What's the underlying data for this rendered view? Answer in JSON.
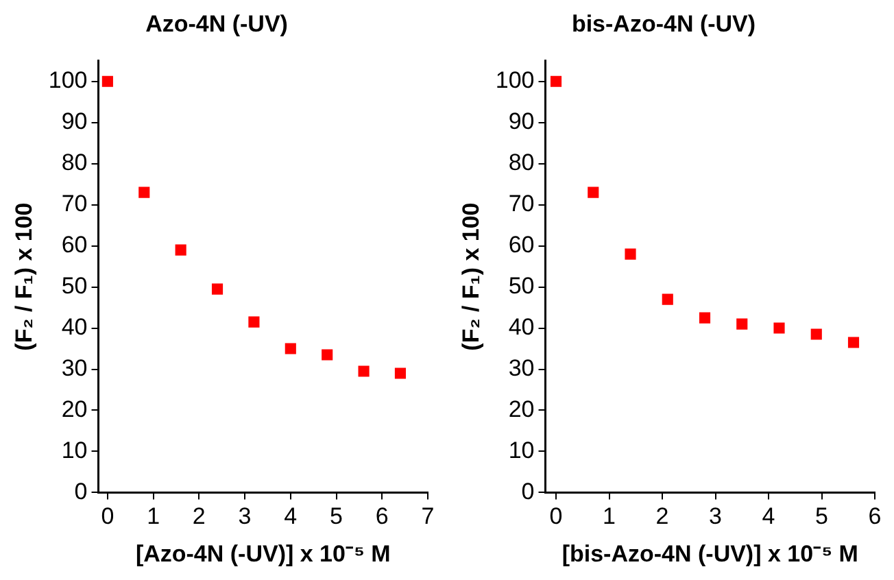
{
  "chart_data": [
    {
      "type": "scatter",
      "title": "Azo-4N (-UV)",
      "xlabel": "[Azo-4N (-UV)] x 10⁻⁵ M",
      "ylabel": "(F₂ / F₁) x 100",
      "x": [
        0,
        0.8,
        1.6,
        2.4,
        3.2,
        4,
        4.8,
        5.6,
        6.4
      ],
      "series": [
        {
          "color": "#ff0000",
          "values": [
            100,
            73,
            59,
            49.5,
            41.5,
            35,
            33.5,
            29.5,
            29
          ]
        }
      ],
      "xlim": [
        -0.2,
        7
      ],
      "xticks": [
        0,
        1,
        2,
        3,
        4,
        5,
        6,
        7
      ],
      "ylim": [
        0,
        105
      ],
      "yticks": [
        0,
        10,
        20,
        30,
        40,
        50,
        60,
        70,
        80,
        90,
        100
      ],
      "grid": false,
      "legend": false,
      "marker": "square"
    },
    {
      "type": "scatter",
      "title": "bis-Azo-4N (-UV)",
      "xlabel": "[bis-Azo-4N (-UV)] x 10⁻⁵ M",
      "ylabel": "(F₂ / F₁) x 100",
      "x": [
        0,
        0.7,
        1.4,
        2.1,
        2.8,
        3.5,
        4.2,
        4.9,
        5.6
      ],
      "series": [
        {
          "color": "#ff0000",
          "values": [
            100,
            73,
            58,
            47,
            42.5,
            41,
            40,
            38.5,
            36.5
          ]
        }
      ],
      "xlim": [
        -0.2,
        6
      ],
      "xticks": [
        0,
        1,
        2,
        3,
        4,
        5,
        6
      ],
      "ylim": [
        0,
        105
      ],
      "yticks": [
        0,
        10,
        20,
        30,
        40,
        50,
        60,
        70,
        80,
        90,
        100
      ],
      "grid": false,
      "legend": false,
      "marker": "square"
    }
  ]
}
